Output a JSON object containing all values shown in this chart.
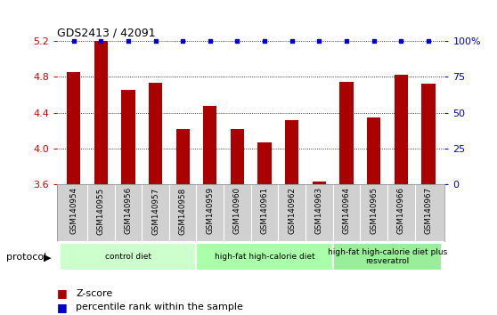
{
  "title": "GDS2413 / 42091",
  "samples": [
    "GSM140954",
    "GSM140955",
    "GSM140956",
    "GSM140957",
    "GSM140958",
    "GSM140959",
    "GSM140960",
    "GSM140961",
    "GSM140962",
    "GSM140963",
    "GSM140964",
    "GSM140965",
    "GSM140966",
    "GSM140967"
  ],
  "zscore": [
    4.85,
    5.2,
    4.65,
    4.73,
    4.22,
    4.48,
    4.22,
    4.07,
    4.32,
    3.63,
    4.74,
    4.35,
    4.82,
    4.72
  ],
  "percentile": [
    100,
    100,
    100,
    100,
    100,
    100,
    100,
    100,
    100,
    100,
    100,
    100,
    100,
    100
  ],
  "bar_color": "#aa0000",
  "dot_color": "#0000cc",
  "ylim_left": [
    3.6,
    5.2
  ],
  "ylim_right": [
    0,
    100
  ],
  "yticks_left": [
    3.6,
    4.0,
    4.4,
    4.8,
    5.2
  ],
  "yticks_right": [
    0,
    25,
    50,
    75,
    100
  ],
  "ytick_labels_left": [
    "3.6",
    "4.0",
    "4.4",
    "4.8",
    "5.2"
  ],
  "ytick_labels_right": [
    "0",
    "25",
    "50",
    "75",
    "100%"
  ],
  "protocols": [
    {
      "label": "control diet",
      "start": 0,
      "end": 5,
      "color": "#ccffcc"
    },
    {
      "label": "high-fat high-calorie diet",
      "start": 5,
      "end": 10,
      "color": "#aaffaa"
    },
    {
      "label": "high-fat high-calorie diet plus\nresveratrol",
      "start": 10,
      "end": 14,
      "color": "#99ee99"
    }
  ],
  "protocol_label": "protocol",
  "legend_zscore": "Z-score",
  "legend_pct": "percentile rank within the sample",
  "bg_color": "#ffffff",
  "tick_color_left": "#cc0000",
  "tick_color_right": "#0000cc",
  "grid_color": "#000000",
  "xlabel_area_color": "#d0d0d0"
}
